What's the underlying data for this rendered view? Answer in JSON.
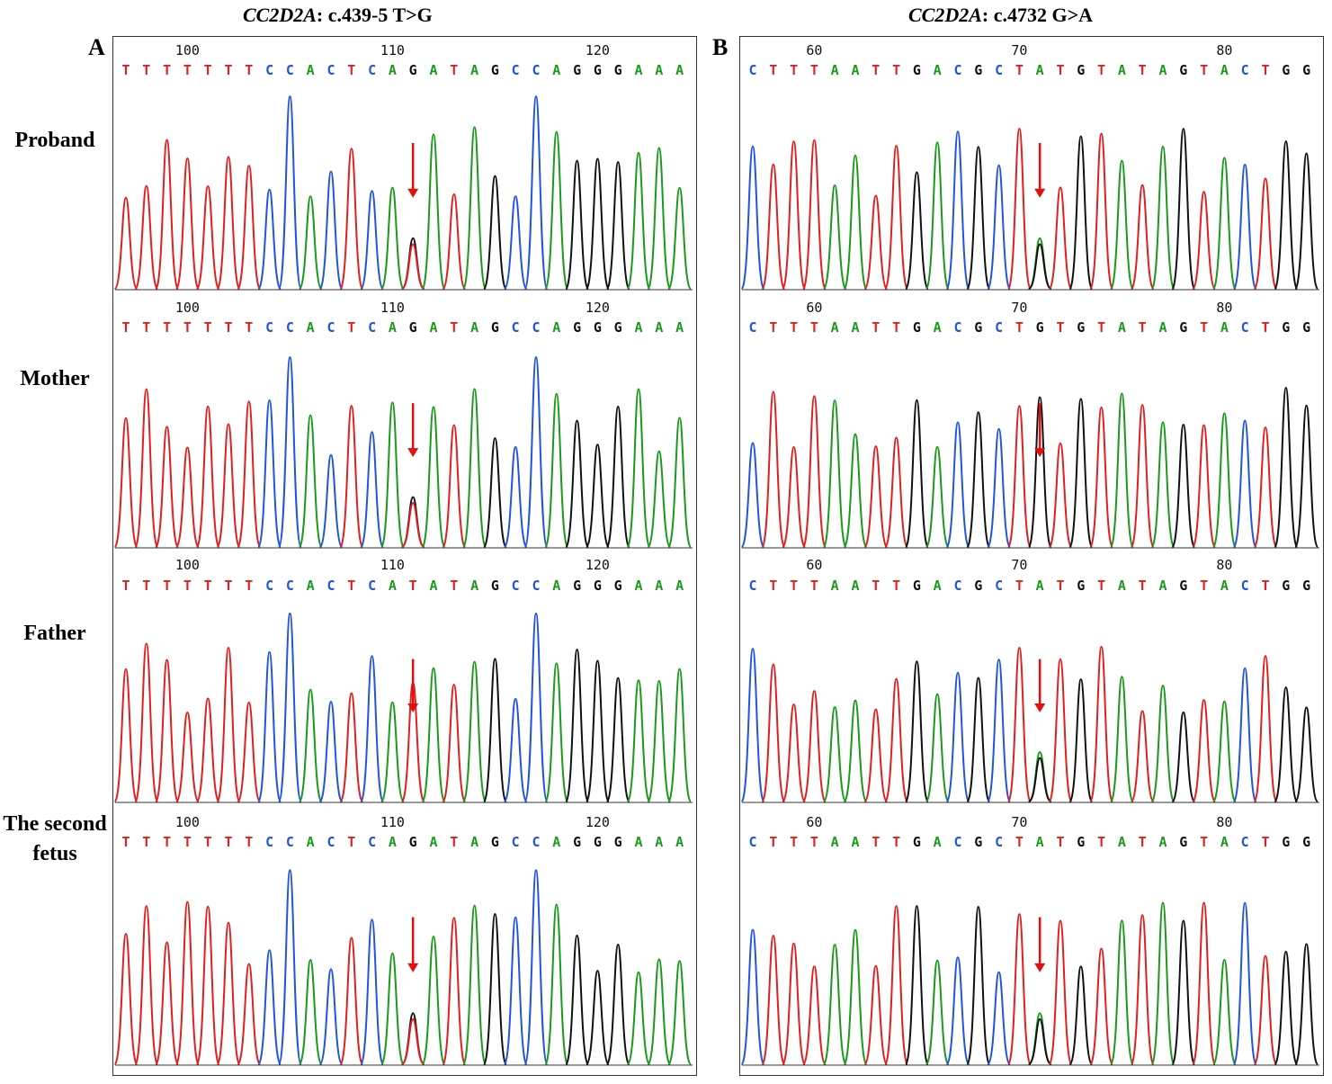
{
  "panels": [
    {
      "id": "A",
      "gene": "CC2D2A",
      "variant": ": c.439-5 T>G",
      "letter": "A",
      "tracks": [
        {
          "sample": "Proband",
          "sequence": "TTTTTTTCCACTCAGATAGCCAGGGAAA",
          "positions": [
            "100",
            "110",
            "120"
          ],
          "arrow_index": 14,
          "variant_call": "G"
        },
        {
          "sample": "Mother",
          "sequence": "TTTTTTTCCACTCAGATAGCCAGGGAAA",
          "positions": [
            "100",
            "110",
            "120"
          ],
          "arrow_index": 14,
          "variant_call": "G"
        },
        {
          "sample": "Father",
          "sequence": "TTTTTTTCCACTCATATAGCCAGGGAAA",
          "positions": [
            "100",
            "110",
            "120"
          ],
          "arrow_index": 14,
          "variant_call": "T"
        },
        {
          "sample": "The second fetus",
          "sequence": "TTTTTTTCCACTCAGATAGCCAGGGAAA",
          "positions": [
            "100",
            "110",
            "120"
          ],
          "arrow_index": 14,
          "variant_call": "G"
        }
      ]
    },
    {
      "id": "B",
      "gene": "CC2D2A",
      "variant": ": c.4732 G>A",
      "letter": "B",
      "tracks": [
        {
          "sample": "Proband",
          "sequence": "CTTTAATTGACGCTATGTATAGTACTGG",
          "positions": [
            "60",
            "70",
            "80"
          ],
          "arrow_index": 14,
          "variant_call": "A"
        },
        {
          "sample": "Mother",
          "sequence": "CTTTAATTGACGCTGTGTATAGTACTGG",
          "positions": [
            "60",
            "70",
            "80"
          ],
          "arrow_index": 14,
          "variant_call": "G"
        },
        {
          "sample": "Father",
          "sequence": "CTTTAATTGACGCTATGTATAGTACTGG",
          "positions": [
            "60",
            "70",
            "80"
          ],
          "arrow_index": 14,
          "variant_call": "A"
        },
        {
          "sample": "The second fetus",
          "sequence": "CTTTAATTGACGCTATGTATAGTACTGG",
          "positions": [
            "60",
            "70",
            "80"
          ],
          "arrow_index": 14,
          "variant_call": "A"
        }
      ]
    }
  ],
  "row_labels": [
    "Proband",
    "Mother",
    "Father",
    "The second fetus"
  ],
  "base_colors": {
    "A": "#1a9a1a",
    "C": "#2255dd",
    "G": "#111111",
    "T": "#e02020"
  },
  "arrow_color": "#e01010"
}
